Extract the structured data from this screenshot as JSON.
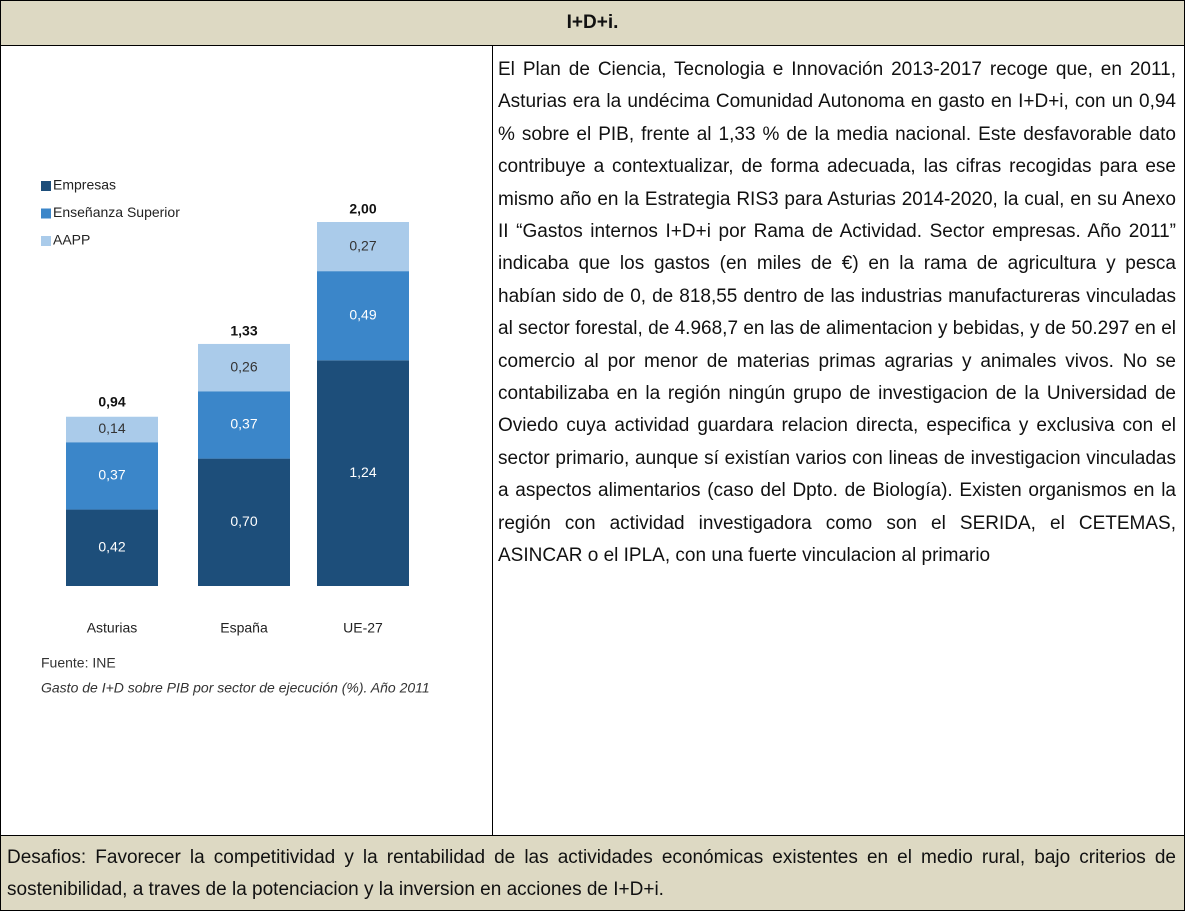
{
  "header": {
    "title": "I+D+i."
  },
  "chart_data": {
    "type": "bar",
    "stacked": true,
    "categories": [
      "Asturias",
      "España",
      "UE-27"
    ],
    "series": [
      {
        "name": "Empresas",
        "color": "#1d4e7a",
        "values": [
          0.42,
          0.7,
          1.24
        ],
        "value_labels": [
          "0,42",
          "0,70",
          "1,24"
        ]
      },
      {
        "name": "Enseñanza Superior",
        "color": "#3b86c9",
        "values": [
          0.37,
          0.37,
          0.49
        ],
        "value_labels": [
          "0,37",
          "0,37",
          "0,49"
        ]
      },
      {
        "name": "AAPP",
        "color": "#aacbea",
        "values": [
          0.14,
          0.26,
          0.27
        ],
        "value_labels": [
          "0,14",
          "0,26",
          "0,27"
        ]
      }
    ],
    "totals": [
      0.94,
      1.33,
      2.0
    ],
    "total_labels": [
      "0,94",
      "1,33",
      "2,00"
    ],
    "source": "Fuente: INE",
    "caption": "Gasto de I+D sobre PIB por sector de ejecución (%). Año 2011"
  },
  "body": {
    "text": "El Plan de Ciencia, Tecnologia e Innovación 2013-2017 recoge que, en 2011, Asturias era la undécima Comunidad Autonoma en gasto en I+D+i, con un 0,94 % sobre el PIB, frente al 1,33 % de la media nacional. Este desfavorable dato contribuye a contextualizar, de forma adecuada, las cifras recogidas para ese mismo año en la Estrategia RIS3 para Asturias 2014-2020, la cual, en su Anexo II “Gastos internos I+D+i por Rama de Actividad. Sector empresas. Año 2011” indicaba que los gastos (en miles de €) en la rama de agricultura y pesca habían sido de 0, de 818,55 dentro de las industrias manufactureras vinculadas al sector forestal, de 4.968,7 en las de alimentacion y bebidas, y de 50.297 en el comercio al por menor de materias primas agrarias y animales vivos. No se contabilizaba en la región ningún grupo de investigacion de la Universidad de Oviedo cuya actividad guardara relacion directa, especifica y exclusiva con el sector primario, aunque sí existían varios con lineas de investigacion vinculadas a aspectos alimentarios (caso del Dpto. de Biología). Existen organismos en la región con actividad investigadora como son el SERIDA, el CETEMAS, ASINCAR o el IPLA, con una fuerte vinculacion al primario"
  },
  "footer": {
    "text": "Desafios: Favorecer la competitividad y la rentabilidad de las actividades económicas existentes en el medio rural, bajo criterios de sostenibilidad, a traves de la potenciacion y la inversion en acciones de I+D+i."
  }
}
